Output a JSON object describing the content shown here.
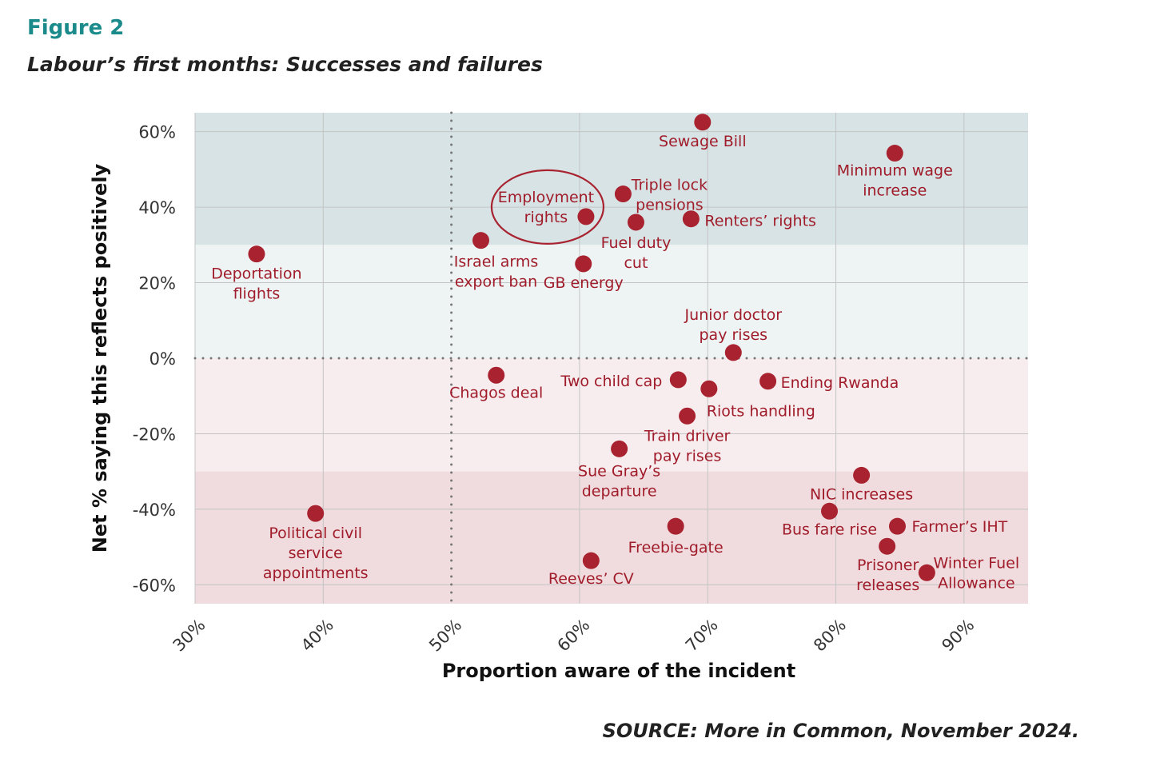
{
  "figure_label": "Figure 2",
  "title": "Labour’s first months: Successes and failures",
  "source": "SOURCE: More in Common, November 2024.",
  "colors": {
    "title": "#1a8a8a",
    "point": "#a8222f",
    "label": "#a01c2a",
    "band_high": "#d7e3e5",
    "band_pos": "#eef4f4",
    "band_neg": "#f7ecee",
    "band_low": "#f0dcde"
  },
  "chart_data": {
    "type": "scatter",
    "xlabel": "Proportion aware of the incident",
    "ylabel": "Net % saying this reflects positively",
    "xlim": [
      30,
      95
    ],
    "ylim": [
      -65,
      65
    ],
    "x_ticks": [
      30,
      40,
      50,
      60,
      70,
      80,
      90
    ],
    "x_tick_labels": [
      "30%",
      "40%",
      "50%",
      "60%",
      "70%",
      "80%",
      "90%"
    ],
    "y_ticks": [
      60,
      40,
      20,
      0,
      -20,
      -40,
      -60
    ],
    "y_tick_labels": [
      "60%",
      "40%",
      "20%",
      "0%",
      "-20%",
      "-40%",
      "-60%"
    ],
    "grid": true,
    "reference_lines": {
      "x": 50,
      "y": 0
    },
    "bands": [
      [
        30,
        65
      ],
      [
        0,
        30
      ],
      [
        -30,
        0
      ],
      [
        -65,
        -30
      ]
    ],
    "highlighted": "Employment rights",
    "points": [
      {
        "label": [
          "Sewage Bill"
        ],
        "x": 69.6,
        "y": 62.5
      },
      {
        "label": [
          "Minimum wage",
          "increase"
        ],
        "x": 84.6,
        "y": 54.3
      },
      {
        "label": [
          "Triple lock",
          "pensions"
        ],
        "x": 63.4,
        "y": 43.5
      },
      {
        "label": [
          "Employment",
          "rights"
        ],
        "x": 60.5,
        "y": 37.5
      },
      {
        "label": [
          "Fuel duty",
          "cut"
        ],
        "x": 64.4,
        "y": 36.0
      },
      {
        "label": [
          "Renters’ rights"
        ],
        "x": 68.7,
        "y": 36.9
      },
      {
        "label": [
          "Israel arms",
          "export ban"
        ],
        "x": 52.3,
        "y": 31.2
      },
      {
        "label": [
          "GB energy"
        ],
        "x": 60.3,
        "y": 25.0
      },
      {
        "label": [
          "Deportation",
          "flights"
        ],
        "x": 34.8,
        "y": 27.6
      },
      {
        "label": [
          "Junior doctor",
          "pay rises"
        ],
        "x": 72.0,
        "y": 1.5
      },
      {
        "label": [
          "Chagos deal"
        ],
        "x": 53.5,
        "y": -4.5
      },
      {
        "label": [
          "Two child cap"
        ],
        "x": 67.7,
        "y": -5.7
      },
      {
        "label": [
          "Riots handling"
        ],
        "x": 70.1,
        "y": -8.1
      },
      {
        "label": [
          "Ending Rwanda"
        ],
        "x": 74.7,
        "y": -6.1
      },
      {
        "label": [
          "Train driver",
          "pay rises"
        ],
        "x": 68.4,
        "y": -15.3
      },
      {
        "label": [
          "Sue Gray’s",
          "departure"
        ],
        "x": 63.1,
        "y": -24.0
      },
      {
        "label": [
          "NIC increases"
        ],
        "x": 82.0,
        "y": -31.0
      },
      {
        "label": [
          "Bus fare rise"
        ],
        "x": 79.5,
        "y": -40.5
      },
      {
        "label": [
          "Political civil",
          "service",
          "appointments"
        ],
        "x": 39.4,
        "y": -41.1
      },
      {
        "label": [
          "Freebie-gate"
        ],
        "x": 67.5,
        "y": -44.5
      },
      {
        "label": [
          "Farmer’s IHT"
        ],
        "x": 84.8,
        "y": -44.5
      },
      {
        "label": [
          "Prisoner",
          "releases"
        ],
        "x": 84.0,
        "y": -49.8
      },
      {
        "label": [
          "Winter Fuel",
          "Allowance"
        ],
        "x": 87.1,
        "y": -56.8
      },
      {
        "label": [
          "Reeves’ CV"
        ],
        "x": 60.9,
        "y": -53.6
      }
    ]
  }
}
